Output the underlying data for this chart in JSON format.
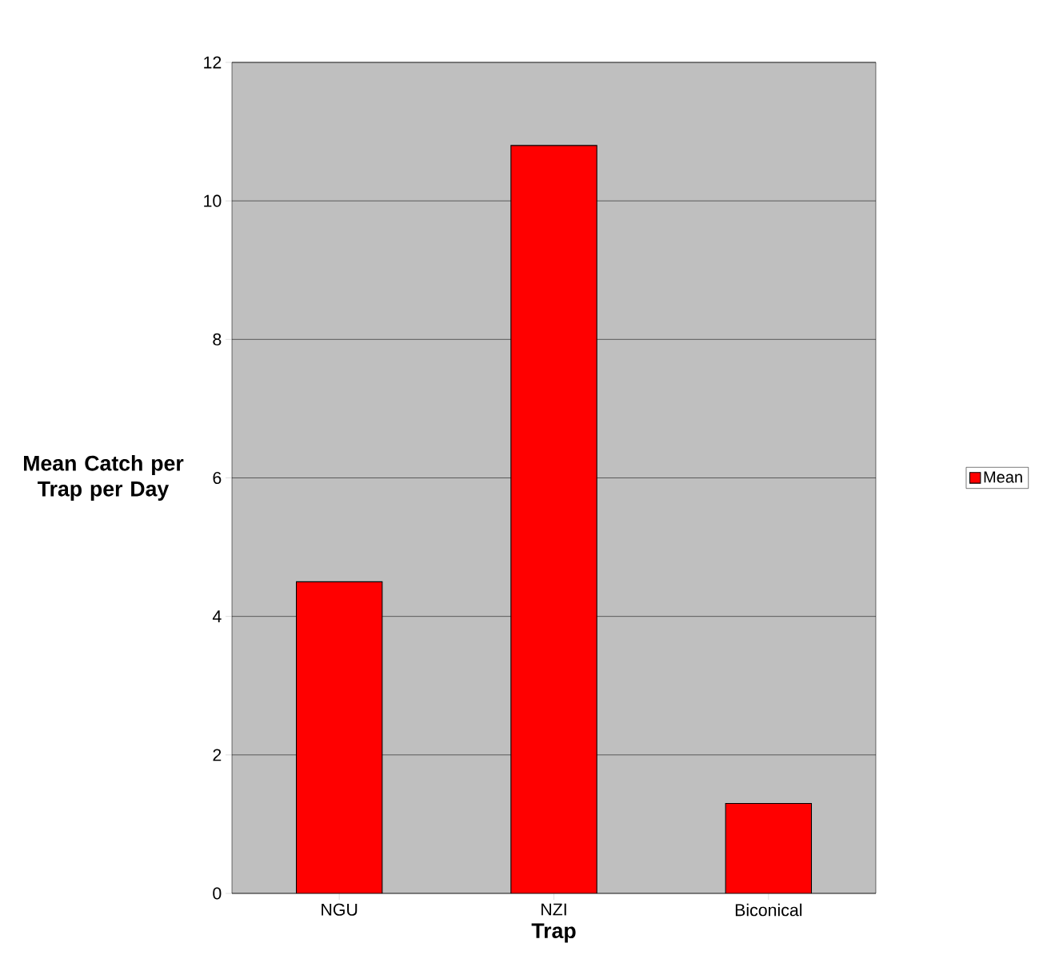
{
  "chart_data": {
    "type": "bar",
    "xlabel": "Trap",
    "ylabel": "Mean Catch per Trap per Day",
    "categories": [
      "NGU",
      "NZI",
      "Biconical"
    ],
    "series": [
      {
        "name": "Mean",
        "color": "#ff0000",
        "values": [
          4.5,
          10.8,
          1.3
        ]
      }
    ],
    "ylim": [
      0,
      12
    ],
    "yticks": [
      0,
      2,
      4,
      6,
      8,
      10,
      12
    ],
    "grid": "y",
    "legend": "right"
  }
}
